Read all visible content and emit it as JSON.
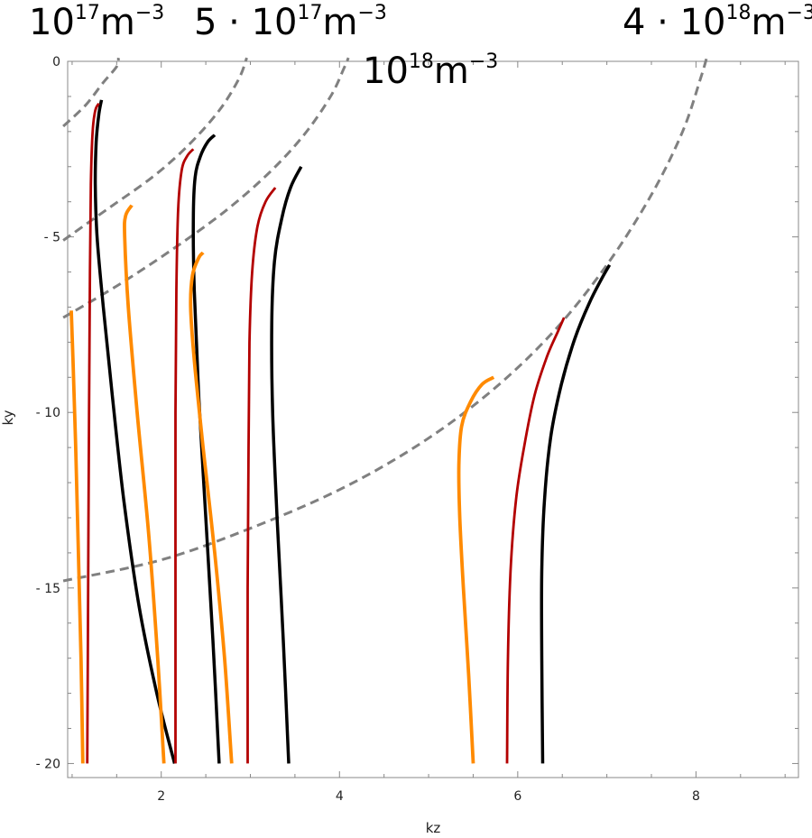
{
  "chart_data": {
    "type": "line",
    "xlabel": "kz",
    "ylabel": "ky",
    "xlim": [
      0.95,
      9.15
    ],
    "ylim": [
      -20.4,
      0.0
    ],
    "x_ticks": [
      2,
      4,
      6,
      8
    ],
    "y_ticks": [
      0,
      -5,
      -10,
      -15,
      -20
    ],
    "x_tick_labels": [
      "2",
      "4",
      "6",
      "8"
    ],
    "y_tick_labels": [
      "0",
      "- 5",
      "- 10",
      "- 15",
      "- 20"
    ],
    "grid": false,
    "density_labels": [
      {
        "base": "10",
        "exp": "17",
        "unit": "m",
        "unit_exp": "−3"
      },
      {
        "base": "5 · 10",
        "exp": "17",
        "unit": "m",
        "unit_exp": "−3"
      },
      {
        "base": "10",
        "exp": "18",
        "unit": "m",
        "unit_exp": "−3"
      },
      {
        "base": "4 · 10",
        "exp": "18",
        "unit": "m",
        "unit_exp": "−3"
      }
    ],
    "colors": {
      "black": "#000000",
      "red": "#b30000",
      "orange": "#ff8a00",
      "dashed": "#808080"
    },
    "boundaries": [
      {
        "name": "1e17",
        "x": [
          0.9,
          1.15,
          1.35,
          1.5,
          1.52
        ],
        "y": [
          -1.85,
          -1.25,
          -0.6,
          -0.15,
          0.1
        ]
      },
      {
        "name": "5e17",
        "x": [
          0.9,
          1.4,
          1.9,
          2.3,
          2.65,
          2.87,
          2.96
        ],
        "y": [
          -5.1,
          -4.2,
          -3.3,
          -2.4,
          -1.4,
          -0.5,
          0.1
        ]
      },
      {
        "name": "1e18",
        "x": [
          0.9,
          1.5,
          2.1,
          2.7,
          3.2,
          3.6,
          3.9,
          4.05,
          4.1
        ],
        "y": [
          -7.3,
          -6.4,
          -5.4,
          -4.3,
          -3.2,
          -2.1,
          -1.0,
          -0.2,
          0.1
        ]
      },
      {
        "name": "4e18",
        "x": [
          0.9,
          2.0,
          3.0,
          4.0,
          4.9,
          5.7,
          6.4,
          7.0,
          7.5,
          7.85,
          8.05,
          8.12
        ],
        "y": [
          -14.8,
          -14.2,
          -13.3,
          -12.2,
          -10.9,
          -9.4,
          -7.7,
          -5.8,
          -3.8,
          -2.0,
          -0.5,
          0.1
        ]
      }
    ],
    "series": [
      {
        "color": "black",
        "x": [
          2.15,
          1.95,
          1.75,
          1.58,
          1.45,
          1.35,
          1.28,
          1.26,
          1.27,
          1.3,
          1.33
        ],
        "y": [
          -20,
          -18,
          -15.5,
          -12.5,
          -9.5,
          -7,
          -5,
          -3.5,
          -2.3,
          -1.5,
          -1.1
        ]
      },
      {
        "color": "red",
        "x": [
          1.17,
          1.18,
          1.19,
          1.2,
          1.21,
          1.23,
          1.26,
          1.3
        ],
        "y": [
          -20,
          -15,
          -10,
          -6,
          -3.5,
          -2,
          -1.4,
          -1.2
        ]
      },
      {
        "color": "orange",
        "x": [
          1.12,
          1.1,
          1.07,
          1.04,
          1.01,
          0.99
        ],
        "y": [
          -20,
          -17,
          -14,
          -11,
          -8.5,
          -7.1
        ]
      },
      {
        "color": "orange",
        "x": [
          2.03,
          1.96,
          1.86,
          1.73,
          1.63,
          1.59,
          1.6,
          1.67
        ],
        "y": [
          -20,
          -17,
          -13.5,
          -10,
          -7,
          -5,
          -4.4,
          -4.1
        ]
      },
      {
        "color": "black",
        "x": [
          2.65,
          2.58,
          2.5,
          2.42,
          2.37,
          2.36,
          2.38,
          2.44,
          2.52,
          2.6
        ],
        "y": [
          -20,
          -16.5,
          -13,
          -9.5,
          -6.5,
          -4.5,
          -3.3,
          -2.7,
          -2.3,
          -2.1
        ]
      },
      {
        "color": "red",
        "x": [
          2.16,
          2.16,
          2.16,
          2.17,
          2.19,
          2.23,
          2.29,
          2.36
        ],
        "y": [
          -20,
          -15,
          -10,
          -6.5,
          -4.2,
          -3.1,
          -2.7,
          -2.5
        ]
      },
      {
        "color": "orange",
        "x": [
          2.79,
          2.71,
          2.6,
          2.47,
          2.37,
          2.33,
          2.35,
          2.42,
          2.47
        ],
        "y": [
          -20,
          -17,
          -14,
          -11,
          -8.5,
          -7,
          -6.1,
          -5.6,
          -5.45
        ]
      },
      {
        "color": "black",
        "x": [
          3.43,
          3.37,
          3.3,
          3.25,
          3.24,
          3.27,
          3.35,
          3.45,
          3.57
        ],
        "y": [
          -20,
          -16.5,
          -13,
          -10,
          -7.5,
          -5.7,
          -4.5,
          -3.6,
          -3.0
        ]
      },
      {
        "color": "red",
        "x": [
          2.97,
          2.97,
          2.98,
          2.99,
          3.02,
          3.08,
          3.17,
          3.28
        ],
        "y": [
          -20,
          -15,
          -11,
          -8,
          -6,
          -4.7,
          -4.0,
          -3.6
        ]
      },
      {
        "color": "orange",
        "x": [
          5.5,
          5.45,
          5.39,
          5.35,
          5.34,
          5.37,
          5.47,
          5.6,
          5.73
        ],
        "y": [
          -20,
          -17.5,
          -15,
          -13,
          -11.5,
          -10.4,
          -9.7,
          -9.2,
          -9.0
        ]
      },
      {
        "color": "red",
        "x": [
          5.88,
          5.89,
          5.92,
          5.98,
          6.07,
          6.19,
          6.33,
          6.45,
          6.52
        ],
        "y": [
          -20,
          -17,
          -14.5,
          -12.5,
          -11,
          -9.5,
          -8.4,
          -7.7,
          -7.3
        ]
      },
      {
        "color": "black",
        "x": [
          6.28,
          6.27,
          6.27,
          6.3,
          6.37,
          6.49,
          6.64,
          6.8,
          6.94,
          7.03
        ],
        "y": [
          -20,
          -17,
          -14.5,
          -12.5,
          -10.7,
          -9.2,
          -7.9,
          -6.9,
          -6.2,
          -5.8
        ]
      }
    ]
  }
}
